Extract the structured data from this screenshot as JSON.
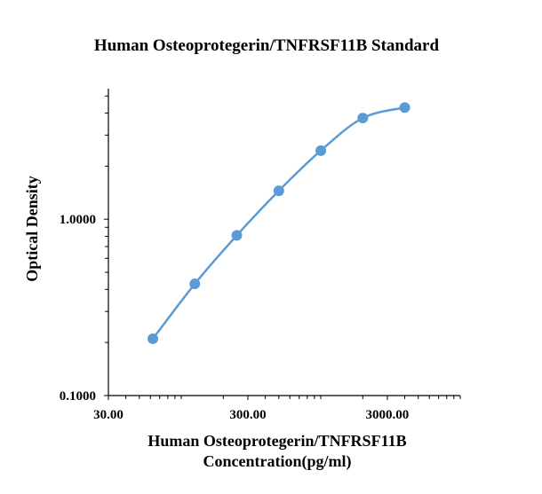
{
  "chart_data": {
    "type": "scatter",
    "title": "Human Osteoprotegerin/TNFRSF11B Standard",
    "xlabel_lines": [
      "Human Osteoprotegerin/TNFRSF11B",
      "Concentration(pg/ml)"
    ],
    "ylabel": "Optical Density",
    "x_scale": "log",
    "y_scale": "log",
    "xlim": [
      30,
      10000
    ],
    "ylim": [
      0.1,
      5.5
    ],
    "x_ticks": [
      {
        "value": 30,
        "label": "30.00"
      },
      {
        "value": 300,
        "label": "300.00"
      },
      {
        "value": 3000,
        "label": "3000.00"
      }
    ],
    "y_ticks": [
      {
        "value": 0.1,
        "label": "0.1000"
      },
      {
        "value": 1,
        "label": "1.0000"
      }
    ],
    "series": [
      {
        "x": [
          62.5,
          125,
          250,
          500,
          1000,
          2000,
          4000
        ],
        "y": [
          0.21,
          0.43,
          0.81,
          1.45,
          2.45,
          3.75,
          4.3
        ],
        "color": "#5b9bd5",
        "smooth": true,
        "markers": true
      }
    ],
    "grid": false,
    "legend": "none"
  }
}
